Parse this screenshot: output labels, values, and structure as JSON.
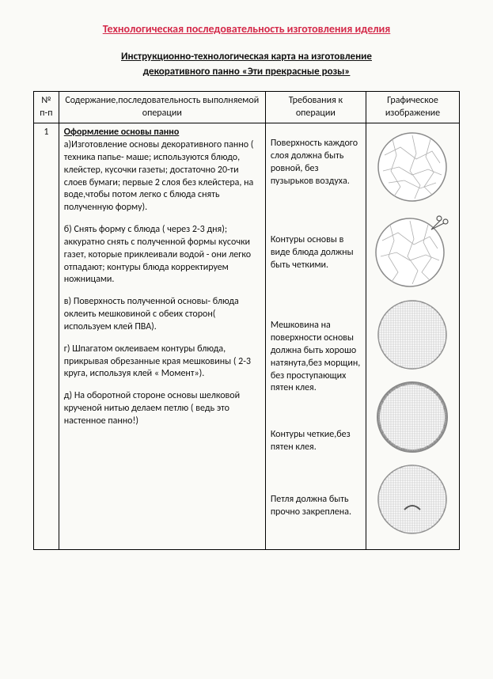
{
  "title": "Технологическая последовательность изготовления иделия",
  "subtitle_l1": "Инструкционно-технологическая карта на изготовление",
  "subtitle_l2": "декоративного панно «Эти прекрасные розы»",
  "headers": {
    "num": "№ п-п",
    "operation": "Содержание,последовательность выполняемой операции",
    "requirements": "Требования к операции",
    "image": "Графическое изображение"
  },
  "row": {
    "num": "1",
    "section_title": "Оформление основы панно",
    "ops": {
      "a": "а)Изготовление основы  декоративного панно ( техника папье- маше; используются  блюдо, клейстер, кусочки газеты; достаточно  20-ти слоев бумаги; первые 2 слоя без клейстера, на воде,чтобы потом легко с  блюда снять полученную форму).",
      "b": "б) Снять форму с блюда ( через 2-3 дня); аккуратно снять с полученной формы кусочки газет, которые приклеивали водой  - они легко отпадают;  контуры блюда корректируем ножницами.",
      "v": "в) Поверхность  полученной  основы- блюда  оклеить  мешковиной  с обеих сторон( используем  клей ПВА).",
      "g": "г) Шпагатом оклеиваем контуры блюда, прикрывая обрезанные края мешковины ( 2-3 круга,  используя клей « Момент»).",
      "d": "д) На оборотной стороне основы шелковой  крученой нитью  делаем петлю ( ведь это настенное панно!)"
    },
    "reqs": {
      "a": "Поверхность каждого слоя должна быть ровной, без пузырьков воздуха.",
      "b": "Контуры основы в виде блюда должны  быть четкими.",
      "v": "Мешковина на поверхности основы должна быть хорошо натянута,без морщин, без проступающих пятен клея.",
      "g": "Контуры четкие,без пятен клея.",
      "d": "Петля должна быть прочно закреплена."
    }
  },
  "graphics": {
    "circle_stroke": "#8a8a8a",
    "circle_fill": "#ffffff",
    "crack_stroke": "#b0b0b0",
    "grid_stroke": "#c0c0c0",
    "loop_stroke": "#555555",
    "diameter": 90
  }
}
